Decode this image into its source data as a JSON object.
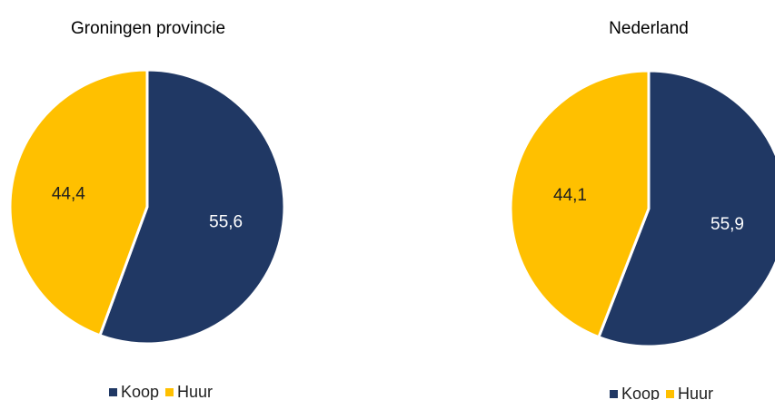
{
  "colors": {
    "koop": "#203864",
    "huur": "#FFC000",
    "koop_label": "#ffffff",
    "huur_label": "#1f1f1f",
    "slice_border": "#ffffff"
  },
  "chart_data": [
    {
      "type": "pie",
      "title": "Groningen provincie",
      "slices": [
        {
          "name": "Koop",
          "value": 55.6,
          "label": "55,6"
        },
        {
          "name": "Huur",
          "value": 44.4,
          "label": "44,4"
        }
      ],
      "legend": [
        "Koop",
        "Huur"
      ],
      "legend_position": "bottom"
    },
    {
      "type": "pie",
      "title": "Nederland",
      "slices": [
        {
          "name": "Koop",
          "value": 55.9,
          "label": "55,9"
        },
        {
          "name": "Huur",
          "value": 44.1,
          "label": "44,1"
        }
      ],
      "legend": [
        "Koop",
        "Huur"
      ],
      "legend_position": "bottom"
    }
  ]
}
